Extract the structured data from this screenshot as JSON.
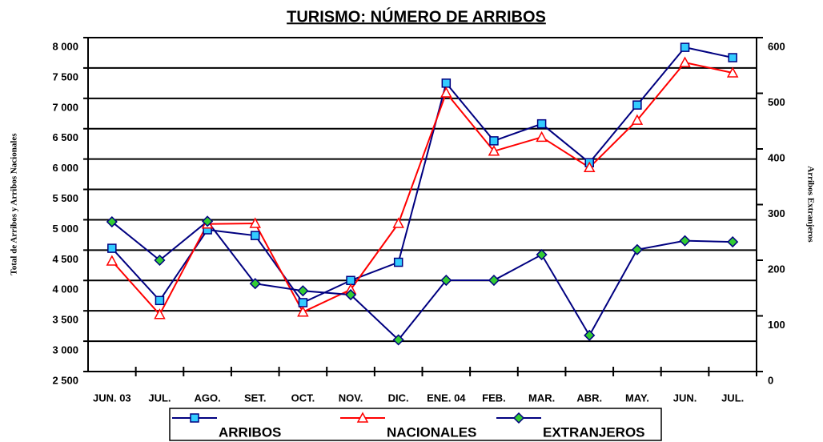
{
  "chart_data": {
    "type": "line",
    "title": "TURISMO: NÚMERO DE ARRIBOS",
    "y_label": "Total de Arribos y Arribos Nacionales",
    "y2_label": "Arribos Extranjeros",
    "categories": [
      "JUN. 03",
      "JUL.",
      "AGO.",
      "SET.",
      "OCT.",
      "NOV.",
      "DIC.",
      "ENE. 04",
      "FEB.",
      "MAR.",
      "ABR.",
      "MAY.",
      "JUN.",
      "JUL."
    ],
    "series": [
      {
        "name": "ARRIBOS",
        "color": "#000080",
        "marker": "square",
        "marker_color": "#33ccff",
        "values": [
          4530,
          3670,
          4835,
          4740,
          3635,
          4000,
          4300,
          7250,
          6300,
          6580,
          5940,
          6890,
          7840,
          7670
        ]
      },
      {
        "name": "NACIONALES",
        "color": "#ff0000",
        "marker": "triangle",
        "marker_color": "#ffffff",
        "values": [
          4320,
          3440,
          4930,
          4940,
          3480,
          3850,
          4940,
          7090,
          6130,
          6360,
          5860,
          6640,
          7590,
          7420
        ]
      },
      {
        "name": "EXTRANJEROS",
        "color": "#000080",
        "marker": "diamond",
        "marker_color": "#33cc33",
        "axis": "y2",
        "values": [
          269,
          200,
          270,
          158,
          145,
          138,
          57,
          164,
          164,
          210,
          65,
          219,
          235,
          233
        ]
      }
    ],
    "ylim": [
      2500,
      8000
    ],
    "yticks": [
      {
        "value": 2500,
        "label": "2 500"
      },
      {
        "value": 3000,
        "label": "3 000"
      },
      {
        "value": 3500,
        "label": "3 500"
      },
      {
        "value": 4000,
        "label": "4 000"
      },
      {
        "value": 4500,
        "label": "4 500"
      },
      {
        "value": 5000,
        "label": "5 000"
      },
      {
        "value": 5500,
        "label": "5 500"
      },
      {
        "value": 6000,
        "label": "6 000"
      },
      {
        "value": 6500,
        "label": "6 500"
      },
      {
        "value": 7000,
        "label": "7 000"
      },
      {
        "value": 7500,
        "label": "7 500"
      },
      {
        "value": 8000,
        "label": "8 000"
      }
    ],
    "y2lim": [
      0,
      600
    ],
    "y2ticks": [
      0,
      100,
      200,
      300,
      400,
      500,
      600
    ],
    "grid": true,
    "legend": "bottom"
  }
}
